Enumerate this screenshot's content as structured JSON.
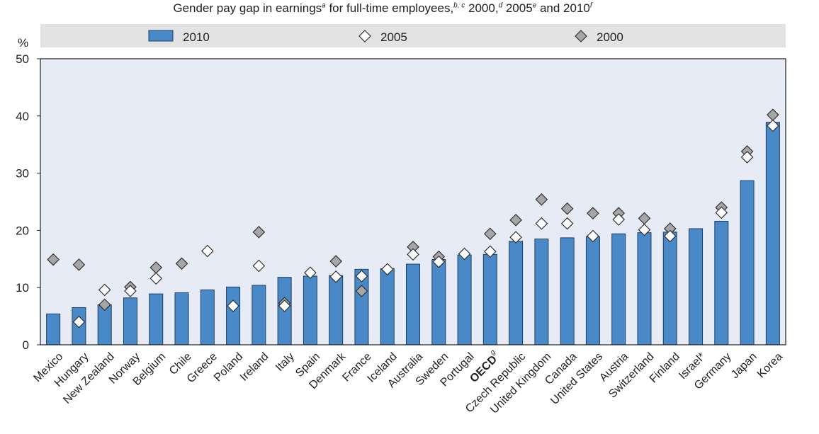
{
  "chart_data": {
    "type": "bar",
    "title": "Gender pay gap in earnings",
    "title_parts": {
      "a": "Gender pay gap in earnings",
      "sup_a": "a",
      "b": " for full-time employees,",
      "sup_b": "b, c",
      "c": " 2000,",
      "sup_c": "d",
      "d": " 2005",
      "sup_d": "e",
      "e": " and 2010",
      "sup_e": "f"
    },
    "ylabel": "%",
    "ylim": [
      0,
      50
    ],
    "yticks": [
      0,
      10,
      20,
      30,
      40,
      50
    ],
    "grid": false,
    "legend_position": "top",
    "categories": [
      "Mexico",
      "Hungary",
      "New Zealand",
      "Norway",
      "Belgium",
      "Chile",
      "Greece",
      "Poland",
      "Ireland",
      "Italy",
      "Spain",
      "Denmark",
      "France",
      "Iceland",
      "Australia",
      "Sweden",
      "Portugal",
      "OECD",
      "Czech Republic",
      "United Kingdom",
      "Canada",
      "United States",
      "Austria",
      "Switzerland",
      "Finland",
      "Israel*",
      "Germany",
      "Japan",
      "Korea"
    ],
    "category_superscripts": {
      "OECD": "g"
    },
    "bold_categories": [
      "OECD"
    ],
    "series": [
      {
        "name": "2010",
        "marker": "bar",
        "color": "#4a89c7",
        "values": [
          5.4,
          6.5,
          7.0,
          8.2,
          8.9,
          9.1,
          9.6,
          10.1,
          10.4,
          11.8,
          12.0,
          12.1,
          13.2,
          13.3,
          14.1,
          14.9,
          15.7,
          15.8,
          18.1,
          18.5,
          18.7,
          18.9,
          19.4,
          19.6,
          19.7,
          20.3,
          21.6,
          28.7,
          38.9
        ]
      },
      {
        "name": "2005",
        "marker": "diamond",
        "color": "#ffffff",
        "values": [
          null,
          4.0,
          9.6,
          9.4,
          11.6,
          null,
          16.4,
          6.8,
          13.8,
          6.8,
          12.6,
          11.9,
          12.0,
          13.2,
          15.8,
          14.5,
          15.9,
          16.3,
          18.8,
          21.2,
          21.2,
          19.0,
          21.9,
          20.1,
          19.0,
          null,
          23.1,
          32.8,
          38.3
        ]
      },
      {
        "name": "2000",
        "marker": "diamond",
        "color": "#a6a6a6",
        "values": [
          14.9,
          14.0,
          7.0,
          10.1,
          13.5,
          14.2,
          null,
          null,
          19.7,
          7.3,
          null,
          14.6,
          9.4,
          null,
          17.1,
          15.4,
          null,
          19.4,
          21.8,
          25.4,
          23.8,
          23.0,
          23.0,
          22.1,
          20.3,
          null,
          24.0,
          33.8,
          40.2
        ]
      }
    ]
  }
}
